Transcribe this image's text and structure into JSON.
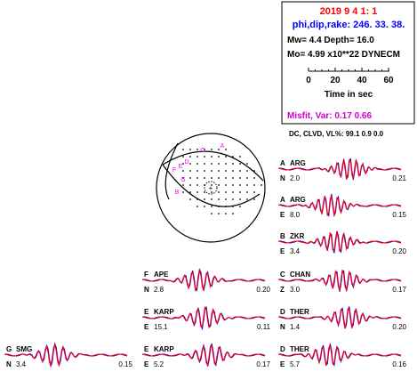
{
  "header": {
    "date_line": "2019 9 4 1: 1",
    "angles_line": "phi,dip,rake: 246. 33. 38.",
    "mw_depth_line": "Mw= 4.4 Depth= 16.0",
    "mo_line": "Mo= 4.99 x10**22 DYNECM",
    "time_scale": {
      "ticks": [
        "0",
        "20",
        "40",
        "60"
      ],
      "label": "Time in sec"
    },
    "misfit_line": "Misfit, Var: 0.17 0.66",
    "dc_line": "DC, CLVD, VL%: 99.1 0.9 0.0",
    "colors": {
      "date": "#ff0000",
      "angles": "#0000ff",
      "misfit": "#cc00cc"
    }
  },
  "beachball": {
    "station_markers": [
      {
        "label": "A",
        "color": "#ff00ff"
      },
      {
        "label": "B",
        "color": "#ff00ff"
      },
      {
        "label": "C",
        "color": "#ff00ff"
      },
      {
        "label": "D",
        "color": "#ff00ff"
      },
      {
        "label": "E",
        "color": "#ff00ff"
      },
      {
        "label": "F",
        "color": "#ff00ff"
      },
      {
        "label": "G",
        "color": "#ff00ff"
      }
    ]
  },
  "legend_colors": {
    "observed": "#ff0000",
    "synthetic": "#0000ff"
  },
  "traces": [
    {
      "letter": "A",
      "station": "ARG",
      "comp": "N",
      "left_value": "2.0",
      "right_value": "0.21"
    },
    {
      "letter": "A",
      "station": "ARG",
      "comp": "E",
      "left_value": "8.0",
      "right_value": "0.15"
    },
    {
      "letter": "B",
      "station": "ZKR",
      "comp": "E",
      "left_value": "3.4",
      "right_value": "0.20"
    },
    {
      "letter": "C",
      "station": "CHAN",
      "comp": "Z",
      "left_value": "3.0",
      "right_value": "0.17"
    },
    {
      "letter": "D",
      "station": "THER",
      "comp": "N",
      "left_value": "1.4",
      "right_value": "0.20"
    },
    {
      "letter": "D",
      "station": "THER",
      "comp": "E",
      "left_value": "5.7",
      "right_value": "0.16"
    },
    {
      "letter": "F",
      "station": "APE",
      "comp": "N",
      "left_value": "2.8",
      "right_value": "0.20"
    },
    {
      "letter": "E",
      "station": "KARP",
      "comp": "E",
      "left_value": "15.1",
      "right_value": "0.11"
    },
    {
      "letter": "E",
      "station": "KARP",
      "comp": "E",
      "left_value": "5.2",
      "right_value": "0.17"
    },
    {
      "letter": "G",
      "station": "SMG",
      "comp": "N",
      "left_value": "3.4",
      "right_value": "0.15"
    }
  ]
}
